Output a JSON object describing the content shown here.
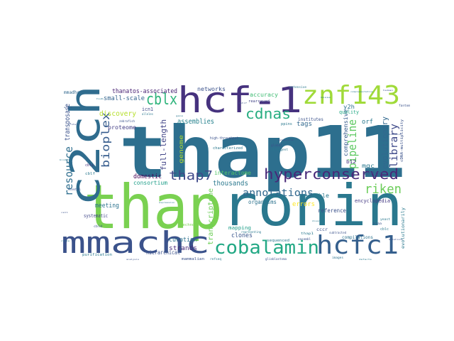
{
  "words": {
    "w1": {
      "text": "thap11",
      "color": "#2d6f8e"
    },
    "w2": {
      "text": "thap",
      "color": "#7ad151"
    },
    "w3": {
      "text": "ronin",
      "color": "#2a788e"
    },
    "w4": {
      "text": "c2ch",
      "color": "#2f6c8e"
    },
    "w5": {
      "text": "hcf-1",
      "color": "#46327e"
    },
    "w6": {
      "text": "znf143",
      "color": "#a0da39"
    },
    "w7": {
      "text": "mmachc",
      "color": "#3b528b"
    },
    "w8": {
      "text": "cobalamin",
      "color": "#22a884"
    },
    "w9": {
      "text": "hcfc1",
      "color": "#355f8d"
    },
    "w10": {
      "text": "hyperconserved",
      "color": "#482878"
    },
    "w11": {
      "text": "riken",
      "color": "#6ccd5a"
    },
    "w12": {
      "text": "cblx",
      "color": "#2fb47c"
    },
    "w13": {
      "text": "cdnas",
      "color": "#27ad81"
    },
    "w14": {
      "text": "thap7",
      "color": "#3e4989"
    },
    "w15": {
      "text": "annotations",
      "color": "#31688e"
    },
    "w16": {
      "text": "bioplex",
      "color": "#365c8d"
    },
    "w17": {
      "text": "resource",
      "color": "#2e6e8e"
    },
    "w18": {
      "text": "pipeline",
      "color": "#5ec962"
    },
    "w19": {
      "text": "library",
      "color": "#3e4989"
    },
    "w20": {
      "text": "evolutionary",
      "color": "#31688e"
    },
    "w21": {
      "text": "thanatos-associated",
      "color": "#482173"
    },
    "w22": {
      "text": "small-scale",
      "color": "#33638d"
    },
    "w23": {
      "text": "transposase",
      "color": "#3b528b"
    },
    "w24": {
      "text": "discovery",
      "color": "#b5de2b"
    },
    "w25": {
      "text": "full-length",
      "color": "#414487"
    },
    "w26": {
      "text": "assemblies",
      "color": "#26828e"
    },
    "w27": {
      "text": "accuracy",
      "color": "#3fbc73"
    },
    "w28": {
      "text": "networks",
      "color": "#3b528b"
    },
    "w29": {
      "text": "tags",
      "color": "#31688e"
    },
    "w30": {
      "text": "proteome",
      "color": "#433e85"
    },
    "w31": {
      "text": "domestic",
      "color": "#440154"
    },
    "w32": {
      "text": "consortium",
      "color": "#1f9e89"
    },
    "w33": {
      "text": "interactome",
      "color": "#52c569"
    },
    "w34": {
      "text": "thousands",
      "color": "#2a788e"
    },
    "w35": {
      "text": "meeting",
      "color": "#2c728e"
    },
    "w36": {
      "text": "curation",
      "color": "#2c728e"
    },
    "w37": {
      "text": "strands",
      "color": "#482878"
    },
    "w38": {
      "text": "hierarchical",
      "color": "#3b528b"
    },
    "w39": {
      "text": "clones",
      "color": "#39568c"
    },
    "w40": {
      "text": "mapping",
      "color": "#1f9e89"
    },
    "w41": {
      "text": "systematic",
      "color": "#404688"
    },
    "w42": {
      "text": "organisms",
      "color": "#2c728e"
    },
    "w43": {
      "text": "reference",
      "color": "#3b528b"
    },
    "w44": {
      "text": "valuable",
      "color": "#2a788e"
    },
    "w45": {
      "text": "encyclopedia",
      "color": "#443983"
    },
    "w46": {
      "text": "errors",
      "color": "#fde725"
    },
    "w47": {
      "text": "shotgun",
      "color": "#3b528b"
    },
    "w48": {
      "text": "mgc",
      "color": "#2a788e"
    },
    "w49": {
      "text": "b12",
      "color": "#46327e"
    },
    "w50": {
      "text": "quality",
      "color": "#22a884"
    },
    "w51": {
      "text": "comprehensive",
      "color": "#365c8d"
    },
    "w52": {
      "text": "orf",
      "color": "#2a788e"
    },
    "w53": {
      "text": "institutes",
      "color": "#3b528b"
    },
    "w54": {
      "text": "y2h",
      "color": "#2c728e"
    },
    "w55": {
      "text": "mmadhc",
      "color": "#31688e"
    },
    "w56": {
      "text": "icn1",
      "color": "#3e4a89"
    },
    "w57": {
      "text": "cblf",
      "color": "#2a788e"
    },
    "w58": {
      "text": "cbli",
      "color": "#46327e"
    },
    "w59": {
      "text": "genome",
      "color": "#b5de2b"
    },
    "w60": {
      "text": "transcriptome",
      "color": "#6ece58"
    },
    "w61": {
      "text": "zebrafish",
      "color": "#3b528b"
    },
    "w62": {
      "text": "characterized",
      "color": "#2a788e"
    },
    "w63": {
      "text": "high-throughput",
      "color": "#3b528b"
    },
    "w64": {
      "text": "rearrayed",
      "color": "#414487"
    },
    "w65": {
      "text": "ppins",
      "color": "#2a788e"
    },
    "w66": {
      "text": "fantom",
      "color": "#3b528b"
    },
    "w67": {
      "text": "compilations",
      "color": "#2c728e"
    },
    "w68": {
      "text": "evolutionarily",
      "color": "#2a788e"
    },
    "w69": {
      "text": "cccr",
      "color": "#3b528b"
    },
    "w70": {
      "text": "sequenced",
      "color": "#2a788e"
    },
    "w71": {
      "text": "mammalian",
      "color": "#3b528b"
    },
    "w72": {
      "text": "technology",
      "color": "#7ad151"
    },
    "w73": {
      "text": "alleles",
      "color": "#2a788e"
    },
    "w74": {
      "text": "essential",
      "color": "#3b528b"
    },
    "w75": {
      "text": "representing",
      "color": "#2a788e"
    },
    "w76": {
      "text": "subtracted",
      "color": "#3b528b"
    },
    "w77": {
      "text": "glioblastoma",
      "color": "#3b528b"
    },
    "w78": {
      "text": "purification",
      "color": "#2a788e"
    },
    "w79": {
      "text": "images",
      "color": "#2c728e"
    },
    "w80": {
      "text": "cblc",
      "color": "#2a788e"
    },
    "w81": {
      "text": "cbld",
      "color": "#3b528b"
    },
    "w82": {
      "text": "extensive",
      "color": "#2a788e"
    },
    "w83": {
      "text": "global",
      "color": "#3b528b"
    },
    "w84": {
      "text": "yeast",
      "color": "#2a788e"
    },
    "w85": {
      "text": "kiaa",
      "color": "#3b528b"
    },
    "w86": {
      "text": "thap1",
      "color": "#2a788e"
    },
    "w87": {
      "text": "ensembl",
      "color": "#3b528b"
    },
    "w88": {
      "text": "refseq",
      "color": "#2a788e"
    },
    "w89": {
      "text": "cDNA-multiplicity",
      "color": "#3b528b"
    },
    "w90": {
      "text": "stringent",
      "color": "#2a788e"
    },
    "w91": {
      "text": "adult",
      "color": "#3b528b"
    },
    "w92": {
      "text": "hub",
      "color": "#2a788e"
    },
    "w93": {
      "text": "protein",
      "color": "#3b528b"
    },
    "w94": {
      "text": "binding",
      "color": "#2a788e"
    },
    "w95": {
      "text": "motif",
      "color": "#3b528b"
    },
    "w96": {
      "text": "gene",
      "color": "#2a788e"
    },
    "w97": {
      "text": "human",
      "color": "#3b528b"
    },
    "w98": {
      "text": "mouse",
      "color": "#2a788e"
    },
    "w99": {
      "text": "cell",
      "color": "#3b528b"
    },
    "w100": {
      "text": "cycle",
      "color": "#2a788e"
    },
    "w101": {
      "text": "analysis",
      "color": "#3b528b"
    },
    "w102": {
      "text": "defects",
      "color": "#2a788e"
    },
    "w103": {
      "text": "mutations",
      "color": "#3b528b"
    },
    "w104": {
      "text": "disorder",
      "color": "#2a788e"
    },
    "w105": {
      "text": "metabolism",
      "color": "#3b528b"
    },
    "w106": {
      "text": "complementation",
      "color": "#2a788e"
    },
    "w107": {
      "text": "knockout",
      "color": "#3b528b"
    },
    "w108": {
      "text": "expression",
      "color": "#2a788e"
    }
  }
}
